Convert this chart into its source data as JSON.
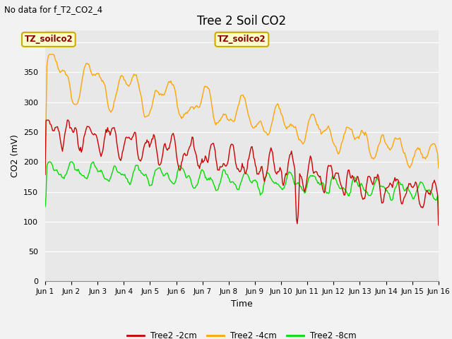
{
  "title": "Tree 2 Soil CO2",
  "subtitle": "No data for f_T2_CO2_4",
  "xlabel": "Time",
  "ylabel": "CO2 (mV)",
  "ylim": [
    0,
    420
  ],
  "yticks": [
    0,
    50,
    100,
    150,
    200,
    250,
    300,
    350,
    400
  ],
  "xtick_labels": [
    "Jun 1",
    "Jun 2",
    "Jun 3",
    "Jun 4",
    "Jun 5",
    "Jun 6",
    "Jun 7",
    "Jun 8",
    "Jun 9",
    "Jun 10",
    "Jun 11",
    "Jun 12",
    "Jun 13",
    "Jun 14",
    "Jun 15",
    "Jun 16"
  ],
  "colors": {
    "red": "#CC0000",
    "orange": "#FFA500",
    "green": "#00DD00",
    "bg": "#E8E8E8",
    "grid": "#FFFFFF",
    "fig_bg": "#F2F2F2",
    "annotation_bg": "#FFFFCC",
    "annotation_border": "#CCAA00"
  },
  "legend_labels": [
    "Tree2 -2cm",
    "Tree2 -4cm",
    "Tree2 -8cm"
  ],
  "annotation_text": "TZ_soilco2",
  "n_points": 480
}
